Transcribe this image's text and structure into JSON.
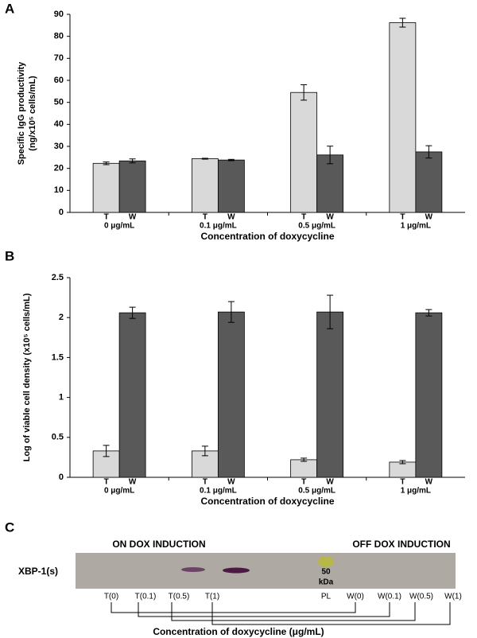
{
  "chart_data": [
    {
      "type": "bar",
      "panel": "A",
      "y_label": [
        "Specific IgG productivity",
        "(ng/x10⁵ cells/mL)"
      ],
      "x_label": "Concentration of doxycycline",
      "categories": [
        "0 μg/mL",
        "0.1 μg/mL",
        "0.5 μg/mL",
        "1 μg/mL"
      ],
      "series": [
        {
          "name": "T",
          "color": "#d9d9d9",
          "values": [
            22.3,
            24.4,
            54.5,
            86.2
          ],
          "errors": [
            0.6,
            0.2,
            3.5,
            2
          ]
        },
        {
          "name": "W",
          "color": "#595959",
          "values": [
            23.4,
            23.8,
            26.1,
            27.5
          ],
          "errors": [
            0.9,
            0.3,
            4,
            2.8
          ]
        }
      ],
      "ylim": [
        0,
        90
      ],
      "yticks": [
        0,
        10,
        20,
        30,
        40,
        50,
        60,
        70,
        80,
        90
      ],
      "grid": false
    },
    {
      "type": "bar",
      "panel": "B",
      "y_label": [
        "Log of viable cell density (x10⁵ cells/mL)"
      ],
      "x_label": "Concentration of doxycycline",
      "categories": [
        "0 μg/mL",
        "0.1 μg/mL",
        "0.5 μg/mL",
        "1 μg/mL"
      ],
      "series": [
        {
          "name": "T",
          "color": "#d9d9d9",
          "values": [
            0.33,
            0.33,
            0.22,
            0.19
          ],
          "errors": [
            0.07,
            0.06,
            0.02,
            0.02
          ]
        },
        {
          "name": "W",
          "color": "#595959",
          "values": [
            2.06,
            2.07,
            2.07,
            2.06
          ],
          "errors": [
            0.07,
            0.13,
            0.21,
            0.04
          ]
        }
      ],
      "ylim": [
        0,
        2.5
      ],
      "yticks": [
        0,
        0.5,
        1,
        1.5,
        2,
        2.5
      ],
      "grid": false
    }
  ],
  "blot": {
    "panel": "C",
    "left_header": "ON DOX INDUCTION",
    "right_header": "OFF DOX INDUCTION",
    "protein": "XBP-1(s)",
    "marker": [
      "50",
      "kDa"
    ],
    "lanes": [
      "T(0)",
      "T(0.1)",
      "T(0.5)",
      "T(1)",
      "PL",
      "W(0)",
      "W(0.1)",
      "W(0.5)",
      "W(1)"
    ],
    "x_label": "Concentration of doxycycline (μg/mL)"
  }
}
